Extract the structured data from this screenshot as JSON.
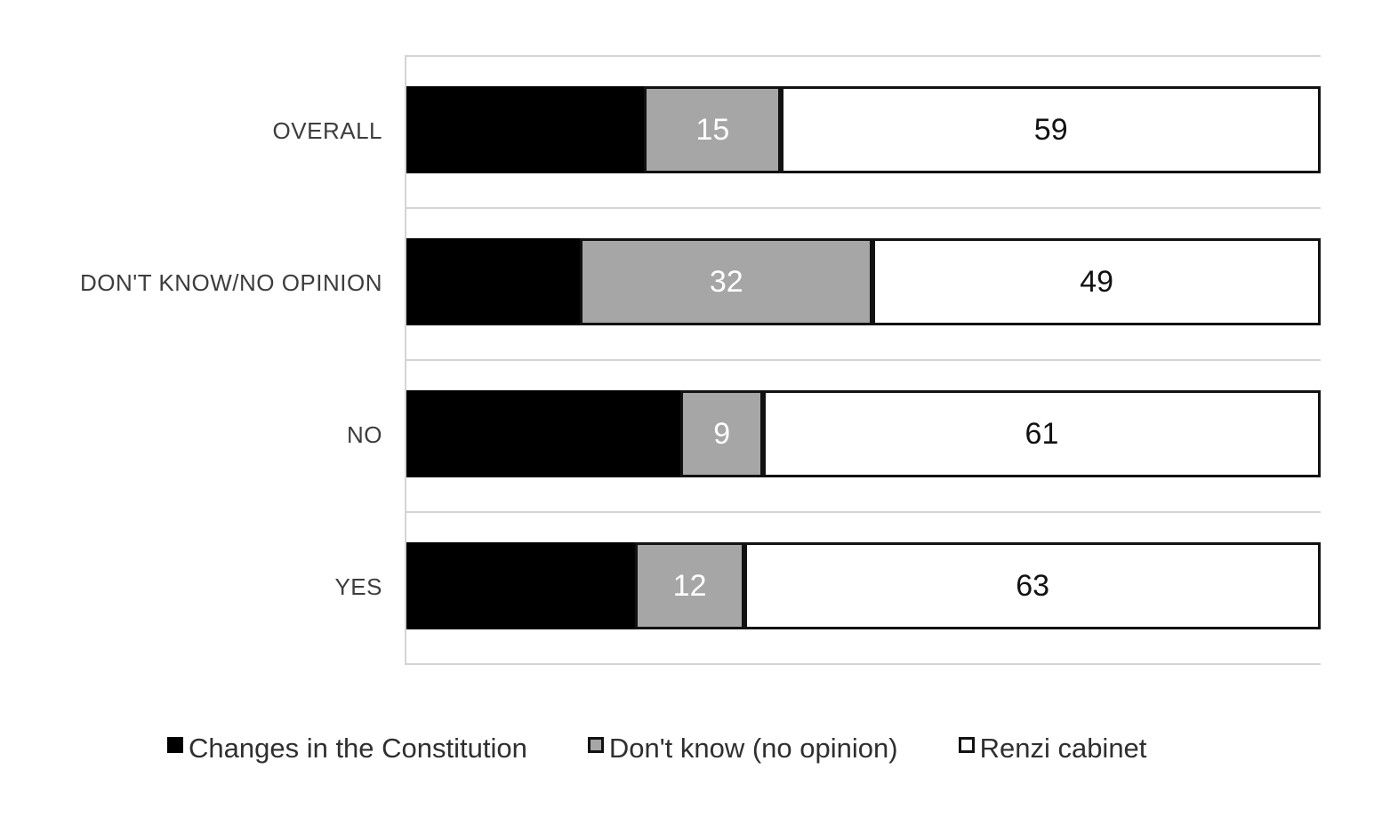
{
  "chart_data": {
    "type": "bar",
    "orientation": "horizontal",
    "stacked": true,
    "title": "",
    "xlabel": "",
    "ylabel": "",
    "xlim": [
      0,
      100
    ],
    "grid": "category-band-lines",
    "legend_position": "bottom",
    "categories": [
      "OVERALL",
      "DON'T KNOW/NO OPINION",
      "NO",
      "YES"
    ],
    "series": [
      {
        "name": "Changes in the Constitution",
        "fill": "#000000",
        "border": "#000000",
        "label_color": "#000000",
        "values": [
          26,
          19,
          30,
          25
        ]
      },
      {
        "name": "Don't know (no opinion)",
        "fill": "#a6a6a6",
        "border": "#121212",
        "label_color": "#ffffff",
        "values": [
          15,
          32,
          9,
          12
        ]
      },
      {
        "name": "Renzi cabinet",
        "fill": "#ffffff",
        "border": "#121212",
        "label_color": "#121212",
        "values": [
          59,
          49,
          61,
          63
        ]
      }
    ],
    "note": "black-segment data labels are not visible in the image (black on black); values inferred from segment widths"
  },
  "rows": [
    {
      "category": "OVERALL",
      "values": [
        26,
        15,
        59
      ],
      "labels": [
        "",
        "15",
        "59"
      ]
    },
    {
      "category": "DON'T KNOW/NO OPINION",
      "values": [
        19,
        32,
        49
      ],
      "labels": [
        "",
        "32",
        "49"
      ]
    },
    {
      "category": "NO",
      "values": [
        30,
        9,
        61
      ],
      "labels": [
        "",
        "9",
        "61"
      ]
    },
    {
      "category": "YES",
      "values": [
        25,
        12,
        63
      ],
      "labels": [
        "",
        "12",
        "63"
      ]
    }
  ],
  "legend": {
    "items": [
      {
        "label": "Changes in the Constitution",
        "fill": "#000000",
        "border": "#000000"
      },
      {
        "label": "Don't know (no opinion)",
        "fill": "#a6a6a6",
        "border": "#121212"
      },
      {
        "label": "Renzi cabinet",
        "fill": "#ffffff",
        "border": "#121212"
      }
    ]
  },
  "colors": {
    "background": "#ffffff",
    "gridline": "#d4d4d4",
    "axis_line": "#d4d4d4",
    "category_text": "#3d3d3d",
    "legend_text": "#2f2f2f"
  }
}
